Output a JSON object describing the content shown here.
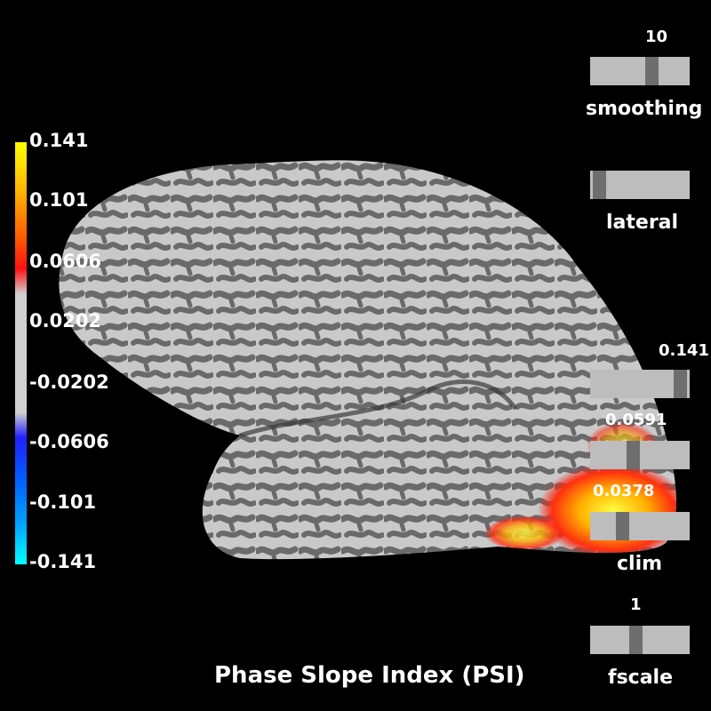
{
  "title": "Phase Slope Index (PSI)",
  "colorbar": {
    "ticks": [
      "0.141",
      "0.101",
      "0.0606",
      "0.0202",
      "-0.0202",
      "-0.0606",
      "-0.101",
      "-0.141"
    ],
    "colors": [
      "#ffff00",
      "#ff8800",
      "#ff0000",
      "#d3d3d3",
      "#0000ff",
      "#00ffff"
    ]
  },
  "sliders": {
    "smoothing": {
      "label": "smoothing",
      "value": "10",
      "fraction": 0.64
    },
    "view": {
      "label": "lateral",
      "fraction": 0.03
    },
    "clim_max": {
      "value": "0.141",
      "fraction": 0.97
    },
    "clim_mid": {
      "value": "0.0591",
      "fraction": 0.42
    },
    "clim_min": {
      "value": "0.0378",
      "fraction": 0.3
    },
    "clim_label": "clim",
    "fscale": {
      "label": "fscale",
      "value": "1",
      "fraction": 0.45
    }
  }
}
